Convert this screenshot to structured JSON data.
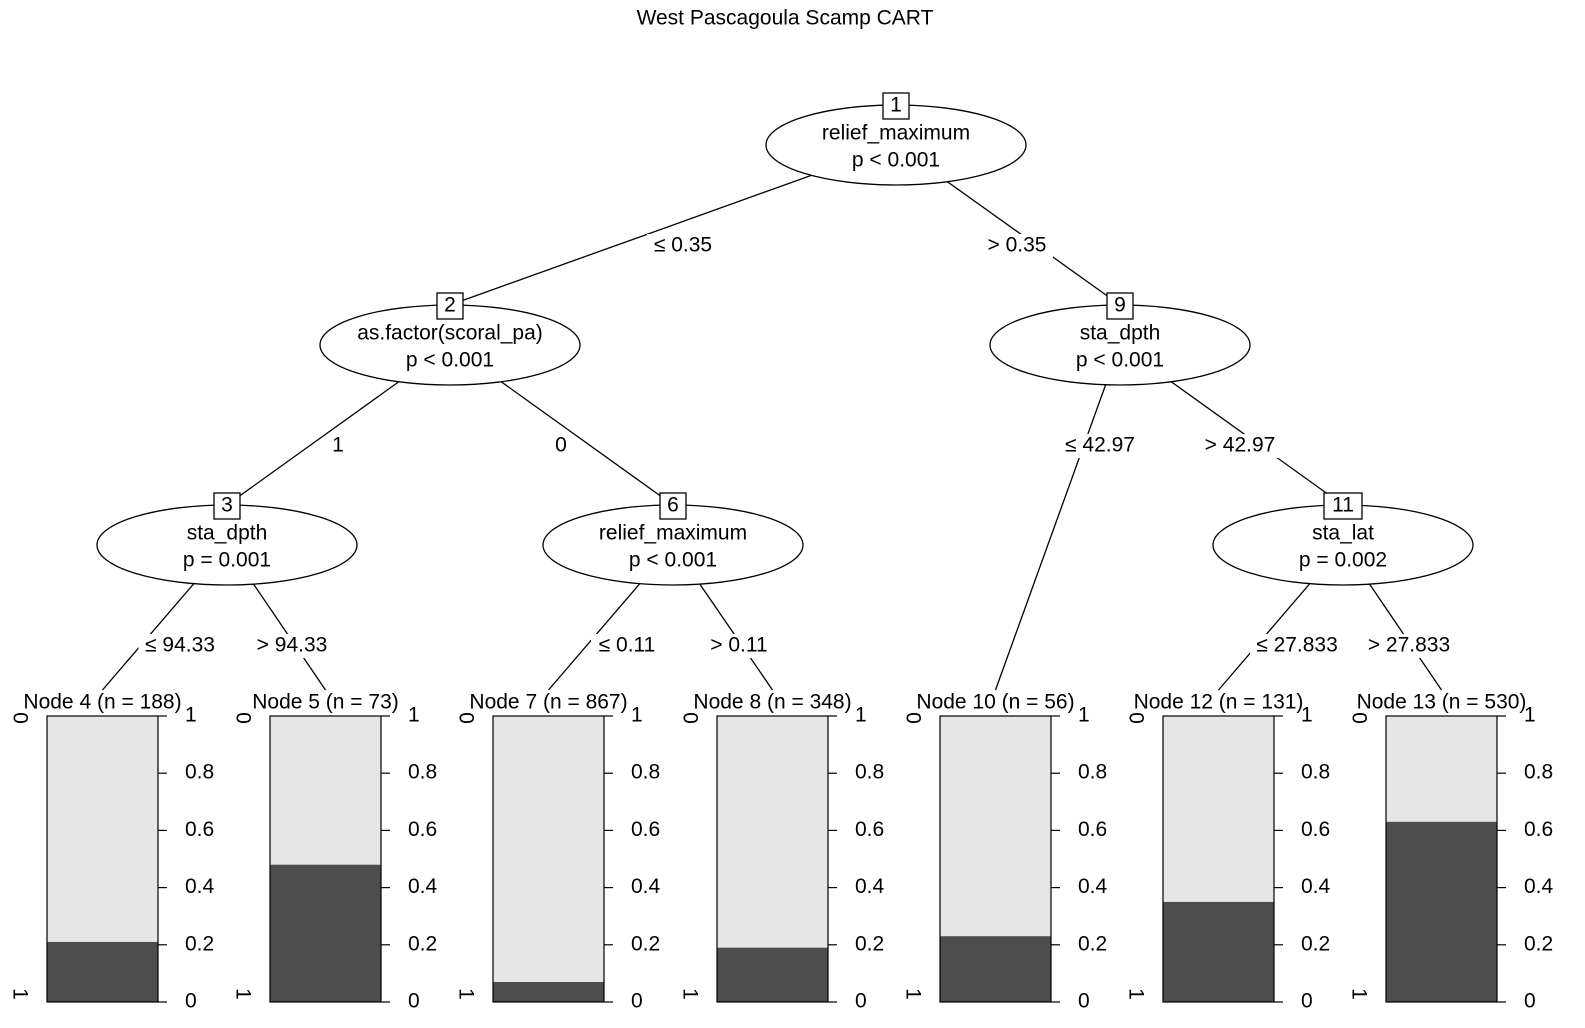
{
  "title": "West Pascagoula Scamp CART",
  "inner_nodes": [
    {
      "id": "1",
      "variable": "relief_maximum",
      "p": "p < 0.001"
    },
    {
      "id": "2",
      "variable": "as.factor(scoral_pa)",
      "p": "p < 0.001"
    },
    {
      "id": "3",
      "variable": "sta_dpth",
      "p": "p = 0.001"
    },
    {
      "id": "6",
      "variable": "relief_maximum",
      "p": "p < 0.001"
    },
    {
      "id": "9",
      "variable": "sta_dpth",
      "p": "p < 0.001"
    },
    {
      "id": "11",
      "variable": "sta_lat",
      "p": "p = 0.002"
    }
  ],
  "edges": [
    {
      "label": "≤ 0.35"
    },
    {
      "label": "> 0.35"
    },
    {
      "label": "1"
    },
    {
      "label": "0"
    },
    {
      "label": "≤ 94.33"
    },
    {
      "label": "> 94.33"
    },
    {
      "label": "≤ 0.11"
    },
    {
      "label": "> 0.11"
    },
    {
      "label": "≤ 42.97"
    },
    {
      "label": "> 42.97"
    },
    {
      "label": "≤ 27.833"
    },
    {
      "label": "> 27.833"
    }
  ],
  "terminal_nodes": [
    {
      "label": "Node 4 (n = 188)",
      "value": 0.21
    },
    {
      "label": "Node 5 (n = 73)",
      "value": 0.48
    },
    {
      "label": "Node 7 (n = 867)",
      "value": 0.07
    },
    {
      "label": "Node 8 (n = 348)",
      "value": 0.19
    },
    {
      "label": "Node 10 (n = 56)",
      "value": 0.23
    },
    {
      "label": "Node 12 (n = 131)",
      "value": 0.35
    },
    {
      "label": "Node 13 (n = 530)",
      "value": 0.63
    }
  ],
  "class_labels": [
    "0",
    "1"
  ],
  "ylim": [
    0,
    1
  ],
  "yticks": [
    0,
    0.2,
    0.4,
    0.6,
    0.8,
    1
  ]
}
